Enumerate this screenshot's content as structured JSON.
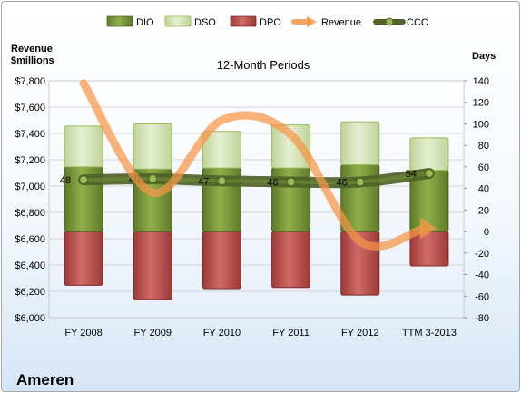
{
  "company": "Ameren",
  "chart_data": {
    "type": "bar",
    "title": "12-Month Periods",
    "y_left_label": [
      "Revenue",
      "$millions"
    ],
    "y_right_label": "Days",
    "categories": [
      "FY 2008",
      "FY 2009",
      "FY 2010",
      "FY 2011",
      "FY 2012",
      "TTM 3-2013"
    ],
    "y_left_ticks": [
      "$6,000",
      "$6,200",
      "$6,400",
      "$6,600",
      "$6,800",
      "$7,000",
      "$7,200",
      "$7,400",
      "$7,600",
      "$7,800"
    ],
    "y_left_range": [
      6000,
      7800
    ],
    "y_right_ticks": [
      "-80",
      "-60",
      "-40",
      "-20",
      "0",
      "20",
      "40",
      "60",
      "80",
      "100",
      "120",
      "140"
    ],
    "y_right_range": [
      -80,
      140
    ],
    "grid": true,
    "legend_position": "top",
    "series": [
      {
        "name": "DIO",
        "kind": "bar",
        "axis": "right",
        "color": "#77933c",
        "values": [
          60,
          58,
          59,
          59,
          62,
          57
        ]
      },
      {
        "name": "DSO",
        "kind": "bar",
        "axis": "right",
        "color": "#d7e4bd",
        "values": [
          38,
          42,
          34,
          40,
          40,
          30
        ]
      },
      {
        "name": "DPO",
        "kind": "bar",
        "axis": "right",
        "color": "#c0504d",
        "values": [
          -50,
          -63,
          -53,
          -52,
          -59,
          -32
        ]
      },
      {
        "name": "Revenue",
        "kind": "line",
        "axis": "left",
        "color": "#f79646",
        "values": [
          7780,
          6950,
          7500,
          7390,
          6580,
          6680
        ]
      },
      {
        "name": "CCC",
        "kind": "line",
        "axis": "right",
        "color": "#4f6228",
        "values": [
          48,
          49,
          47,
          46,
          46,
          54
        ],
        "labels": [
          "48",
          "49",
          "47",
          "46",
          "46",
          "54"
        ]
      }
    ]
  }
}
